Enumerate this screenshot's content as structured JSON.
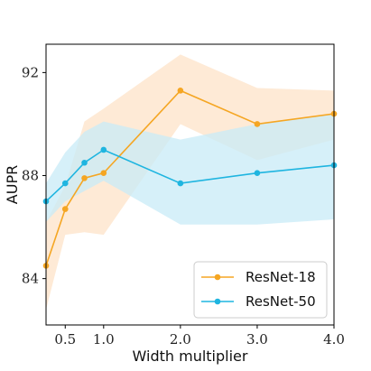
{
  "chart_data": {
    "type": "line",
    "xlabel": "Width multiplier",
    "ylabel": "AUPR",
    "xlim": [
      0.25,
      4.0
    ],
    "ylim": [
      82.2,
      93.1
    ],
    "xticks": [
      0.5,
      1.0,
      2.0,
      3.0,
      4.0
    ],
    "xtick_labels": [
      "0.5",
      "1.0",
      "2.0",
      "3.0",
      "4.0"
    ],
    "yticks": [
      84,
      88,
      92
    ],
    "ytick_labels": [
      "84",
      "88",
      "92"
    ],
    "grid": false,
    "legend_position": "bottom-right",
    "series": [
      {
        "name": "ResNet-18",
        "color": "#f5a623",
        "band_color": "#fde3c8",
        "x": [
          0.25,
          0.5,
          0.75,
          1.0,
          2.0,
          3.0,
          4.0
        ],
        "y": [
          84.5,
          86.7,
          87.9,
          88.1,
          91.3,
          90.0,
          90.4
        ],
        "lower": [
          82.8,
          85.7,
          85.8,
          85.7,
          90.0,
          88.6,
          89.4
        ],
        "upper": [
          86.2,
          87.6,
          90.1,
          90.6,
          92.7,
          91.4,
          91.3
        ]
      },
      {
        "name": "ResNet-50",
        "color": "#1fb5e0",
        "band_color": "#c8ebf7",
        "x": [
          0.25,
          0.5,
          0.75,
          1.0,
          2.0,
          3.0,
          4.0
        ],
        "y": [
          87.0,
          87.7,
          88.5,
          89.0,
          87.7,
          88.1,
          88.4
        ],
        "lower": [
          86.2,
          87.0,
          87.4,
          87.8,
          86.1,
          86.1,
          86.3
        ],
        "upper": [
          87.7,
          88.9,
          89.7,
          90.1,
          89.4,
          90.0,
          90.4
        ]
      }
    ]
  }
}
